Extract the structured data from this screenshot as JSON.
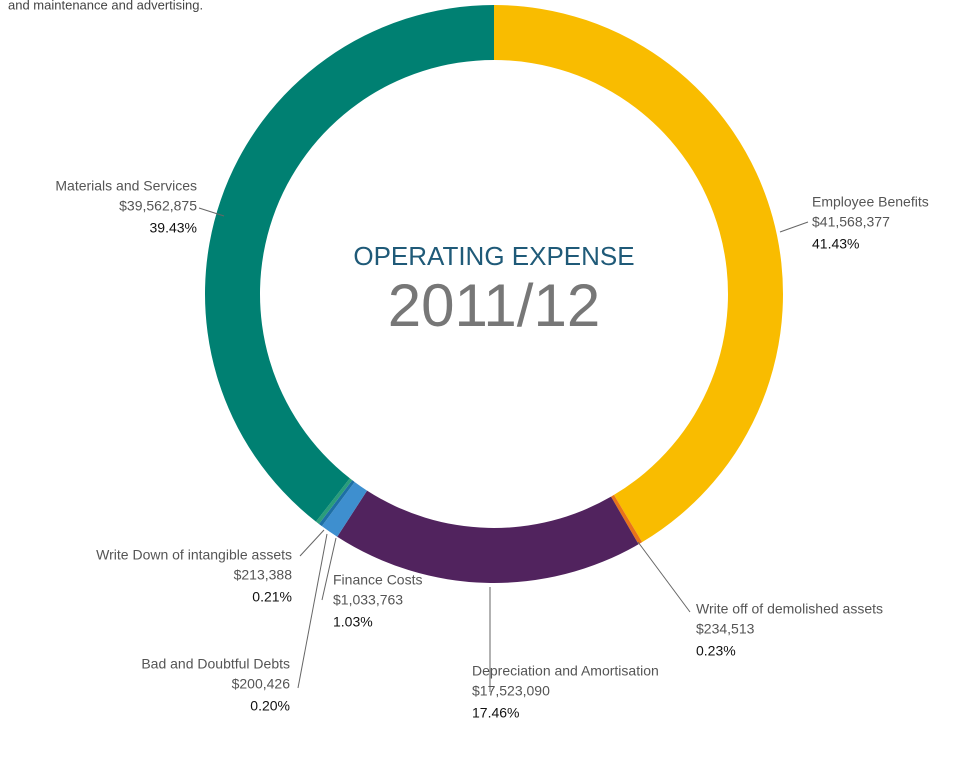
{
  "chart_data": {
    "type": "donut",
    "note": "and maintenance and advertising.",
    "title": "OPERATING EXPENSE",
    "subtitle": "2011/12",
    "categories": [
      "Employee Benefits",
      "Write off of demolished assets",
      "Depreciation and Amortisation",
      "Finance Costs",
      "Bad and Doubtful Debts",
      "Write Down of intangible assets",
      "Materials and Services"
    ],
    "values": [
      41.43,
      0.23,
      17.46,
      1.03,
      0.2,
      0.21,
      39.43
    ],
    "value_labels": [
      "41.43%",
      "0.23%",
      "17.46%",
      "1.03%",
      "0.20%",
      "0.21%",
      "39.43%"
    ],
    "amounts": [
      "$41,568,377",
      "$234,513",
      "$17,523,090",
      "$1,033,763",
      "$200,426",
      "$213,388",
      "$39,562,875"
    ],
    "colors": [
      "#f9bc00",
      "#e8731a",
      "#51235e",
      "#3e8fcf",
      "#1d6fa5",
      "#2a9d7a",
      "#008072"
    ]
  }
}
